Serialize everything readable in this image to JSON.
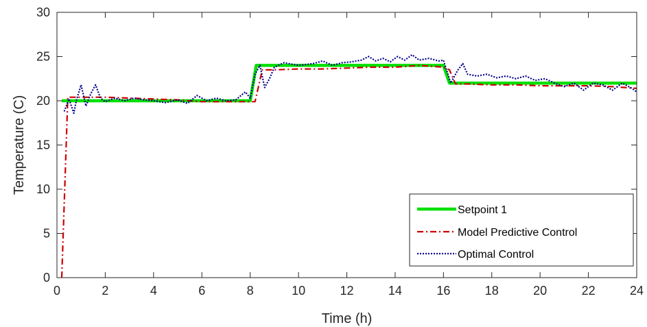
{
  "chart_data": {
    "type": "line",
    "xlabel": "Time (h)",
    "ylabel": "Temperature (C)",
    "xlim": [
      0,
      24
    ],
    "ylim": [
      0,
      30
    ],
    "xticks": [
      0,
      2,
      4,
      6,
      8,
      10,
      12,
      14,
      16,
      18,
      20,
      22,
      24
    ],
    "yticks": [
      0,
      5,
      10,
      15,
      20,
      25,
      30
    ],
    "grid": false,
    "legend_position": "bottom-right",
    "series": [
      {
        "name": "Setpoint 1",
        "color": "#00e000",
        "style": "solid",
        "x": [
          0.2,
          8.0,
          8.25,
          16.0,
          16.25,
          24.0
        ],
        "y": [
          20.0,
          20.0,
          24.0,
          24.0,
          22.0,
          22.0
        ]
      },
      {
        "name": "Model Predictive Control",
        "color": "#cc0000",
        "style": "dashdot",
        "x": [
          0.2,
          0.45,
          1.0,
          2.0,
          3.0,
          4.0,
          5.0,
          6.0,
          7.0,
          8.0,
          8.2,
          8.5,
          9.0,
          10.0,
          11.0,
          12.0,
          13.0,
          14.0,
          15.0,
          16.0,
          16.25,
          16.5,
          17.0,
          18.0,
          19.0,
          20.0,
          21.0,
          22.0,
          23.0,
          24.0
        ],
        "y": [
          0.0,
          20.4,
          20.4,
          20.4,
          20.3,
          20.2,
          20.1,
          19.9,
          19.9,
          19.9,
          19.9,
          23.5,
          23.5,
          23.6,
          23.6,
          23.7,
          23.8,
          23.8,
          24.0,
          23.8,
          23.5,
          21.9,
          21.9,
          21.8,
          21.8,
          21.7,
          21.7,
          21.7,
          21.6,
          21.4
        ]
      },
      {
        "name": "Optimal Control",
        "color": "#00008b",
        "style": "dotted",
        "x": [
          0.3,
          0.5,
          0.7,
          0.8,
          1.0,
          1.2,
          1.4,
          1.6,
          1.8,
          2.0,
          2.4,
          2.8,
          3.2,
          3.6,
          4.0,
          4.5,
          5.0,
          5.4,
          5.8,
          6.2,
          6.6,
          7.0,
          7.4,
          7.8,
          8.0,
          8.2,
          8.4,
          8.6,
          8.8,
          9.0,
          9.4,
          10.0,
          10.6,
          11.0,
          11.4,
          11.8,
          12.2,
          12.6,
          12.9,
          13.2,
          13.5,
          13.8,
          14.1,
          14.4,
          14.7,
          15.0,
          15.4,
          15.8,
          16.0,
          16.3,
          16.6,
          16.8,
          17.0,
          17.4,
          17.8,
          18.2,
          18.6,
          19.0,
          19.4,
          19.8,
          20.2,
          20.6,
          21.0,
          21.4,
          21.8,
          22.2,
          22.6,
          23.0,
          23.4,
          23.8,
          24.0
        ],
        "y": [
          18.8,
          20.2,
          18.6,
          20.0,
          21.8,
          19.4,
          20.8,
          21.8,
          20.3,
          19.9,
          20.3,
          20.0,
          20.3,
          20.1,
          20.0,
          19.8,
          20.1,
          19.7,
          20.6,
          20.0,
          20.3,
          20.0,
          20.1,
          21.0,
          20.3,
          23.0,
          24.0,
          21.5,
          22.5,
          23.8,
          24.3,
          24.0,
          24.2,
          24.5,
          24.0,
          24.3,
          24.4,
          24.6,
          25.0,
          24.5,
          24.8,
          24.4,
          25.0,
          24.6,
          25.2,
          24.6,
          24.8,
          24.5,
          24.6,
          22.0,
          23.5,
          24.2,
          23.0,
          22.8,
          23.0,
          22.6,
          22.8,
          22.5,
          22.8,
          22.3,
          22.5,
          22.0,
          21.6,
          22.0,
          21.2,
          22.0,
          21.8,
          21.2,
          22.0,
          21.4,
          21.0
        ]
      }
    ]
  }
}
